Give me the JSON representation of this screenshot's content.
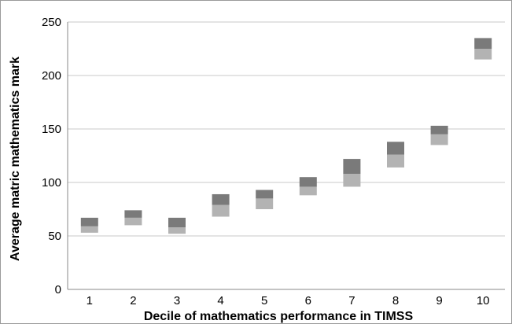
{
  "chart_data": {
    "type": "bar",
    "subtype": "floating-stacked",
    "title": "",
    "xlabel": "Decile of mathematics performance in TIMSS",
    "ylabel": "Average matric mathematics mark",
    "categories": [
      "1",
      "2",
      "3",
      "4",
      "5",
      "6",
      "7",
      "8",
      "9",
      "10"
    ],
    "ylim": [
      0,
      250
    ],
    "yticks": [
      0,
      50,
      100,
      150,
      200,
      250
    ],
    "grid": true,
    "legend": "none",
    "series": [
      {
        "color": "#b3b3b3",
        "low": [
          53,
          60,
          52,
          68,
          75,
          88,
          96,
          114,
          135,
          215
        ],
        "high": [
          59,
          67,
          58,
          79,
          85,
          96,
          108,
          126,
          145,
          225
        ]
      },
      {
        "color": "#7a7a7a",
        "low": [
          59,
          67,
          58,
          79,
          85,
          96,
          108,
          126,
          145,
          225
        ],
        "high": [
          67,
          74,
          67,
          89,
          93,
          105,
          122,
          138,
          153,
          235
        ]
      }
    ]
  }
}
